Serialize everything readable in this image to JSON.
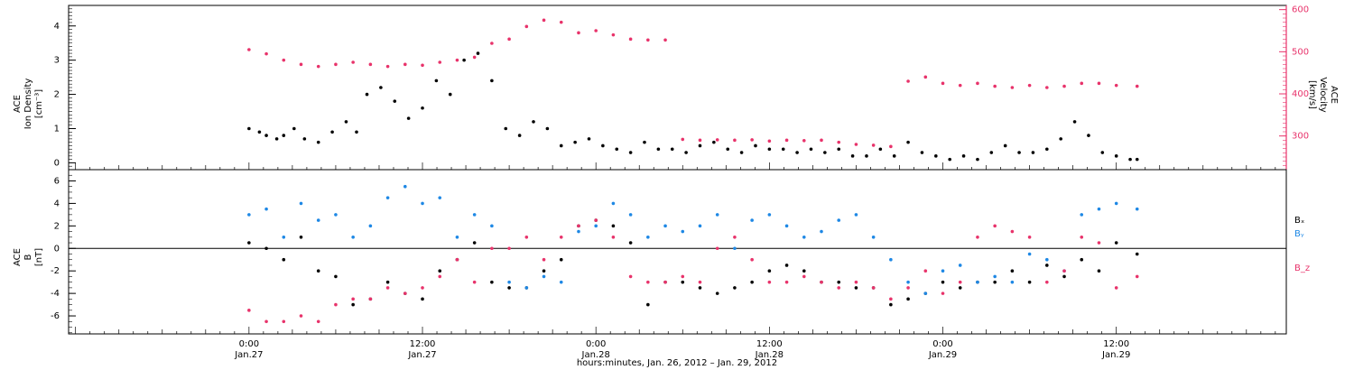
{
  "chart_data": [
    {
      "type": "scatter",
      "panel": "top",
      "ylabel_left": [
        "ACE",
        "Ion Density",
        "[cm⁻³]"
      ],
      "ylabel_right": [
        "ACE",
        "Velocity",
        "[km/s]"
      ],
      "yleft_ticks": [
        "0",
        "1",
        "2",
        "3",
        "4"
      ],
      "yleft_lim": [
        -0.2,
        4.6
      ],
      "yright_ticks": [
        "300",
        "400",
        "500",
        "600"
      ],
      "yright_lim": [
        220,
        610
      ],
      "colors": {
        "density": "#000000",
        "velocity": "#e8336b"
      },
      "series": [
        {
          "axis": "left",
          "color": "#000000",
          "x": [
            0,
            0.03,
            0.05,
            0.08,
            0.1,
            0.13,
            0.16,
            0.2,
            0.24,
            0.28,
            0.31,
            0.34,
            0.38,
            0.42,
            0.46,
            0.5,
            0.54,
            0.58,
            0.62,
            0.66,
            0.7,
            0.74,
            0.78,
            0.82,
            0.86,
            0.9,
            0.94,
            0.98,
            1.02,
            1.06,
            1.1,
            1.14,
            1.18,
            1.22,
            1.26,
            1.3,
            1.34,
            1.38,
            1.42,
            1.46,
            1.5,
            1.54,
            1.58,
            1.62,
            1.66,
            1.7,
            1.74,
            1.78,
            1.82,
            1.86,
            1.9,
            1.94,
            1.98,
            2.02,
            2.06,
            2.1,
            2.14,
            2.18,
            2.22,
            2.26,
            2.3,
            2.34,
            2.38,
            2.42,
            2.46,
            2.5,
            2.54,
            2.56
          ],
          "y": [
            1.0,
            0.9,
            0.8,
            0.7,
            0.8,
            1.0,
            0.7,
            0.6,
            0.9,
            1.2,
            0.9,
            2.0,
            2.2,
            1.8,
            1.3,
            1.6,
            2.4,
            2.0,
            3.0,
            3.2,
            2.4,
            1.0,
            0.8,
            1.2,
            1.0,
            0.5,
            0.6,
            0.7,
            0.5,
            0.4,
            0.3,
            0.6,
            0.4,
            0.4,
            0.3,
            0.5,
            0.6,
            0.4,
            0.3,
            0.5,
            0.4,
            0.4,
            0.3,
            0.4,
            0.3,
            0.4,
            0.2,
            0.2,
            0.4,
            0.2,
            0.6,
            0.3,
            0.2,
            0.1,
            0.2,
            0.1,
            0.3,
            0.5,
            0.3,
            0.3,
            0.4,
            0.7,
            1.2,
            0.8,
            0.3,
            0.2,
            0.1,
            0.1
          ]
        },
        {
          "axis": "right",
          "color": "#e8336b",
          "x": [
            0,
            0.05,
            0.1,
            0.15,
            0.2,
            0.25,
            0.3,
            0.35,
            0.4,
            0.45,
            0.5,
            0.55,
            0.6,
            0.65,
            0.7,
            0.75,
            0.8,
            0.85,
            0.9,
            0.95,
            1.0,
            1.05,
            1.1,
            1.15,
            1.2,
            1.25,
            1.3,
            1.35,
            1.4,
            1.45,
            1.5,
            1.55,
            1.6,
            1.65,
            1.7,
            1.75,
            1.8,
            1.85,
            1.9,
            1.95,
            2.0,
            2.05,
            2.1,
            2.15,
            2.2,
            2.25,
            2.3,
            2.35,
            2.4,
            2.45,
            2.5,
            2.56
          ],
          "y": [
            505,
            495,
            480,
            470,
            465,
            470,
            475,
            470,
            465,
            470,
            468,
            475,
            480,
            487,
            520,
            530,
            560,
            575,
            570,
            545,
            550,
            540,
            530,
            528,
            528,
            292,
            290,
            291,
            290,
            291,
            288,
            290,
            289,
            290,
            285,
            280,
            278,
            275,
            430,
            440,
            425,
            420,
            425,
            418,
            415,
            420,
            415,
            418,
            425,
            425,
            420,
            418
          ]
        }
      ]
    },
    {
      "type": "scatter",
      "panel": "bottom",
      "ylabel": [
        "ACE",
        "B",
        "[nT]"
      ],
      "yticks": [
        "-6",
        "-4",
        "-2",
        "0",
        "2",
        "4",
        "6"
      ],
      "ylim": [
        -7.6,
        7.0
      ],
      "zero_line": true,
      "legend": [
        "Bₓ",
        "Bᵧ",
        "B_z"
      ],
      "colors": {
        "Bx": "#000000",
        "By": "#1e88e5",
        "Bz": "#e8336b"
      },
      "series": [
        {
          "name": "Bₓ",
          "color": "#000000",
          "x": [
            0,
            0.05,
            0.1,
            0.15,
            0.2,
            0.25,
            0.3,
            0.35,
            0.4,
            0.45,
            0.5,
            0.55,
            0.6,
            0.65,
            0.7,
            0.75,
            0.8,
            0.85,
            0.9,
            0.95,
            1.0,
            1.05,
            1.1,
            1.15,
            1.2,
            1.25,
            1.3,
            1.35,
            1.4,
            1.45,
            1.5,
            1.55,
            1.6,
            1.65,
            1.7,
            1.75,
            1.8,
            1.85,
            1.9,
            1.95,
            2.0,
            2.05,
            2.1,
            2.15,
            2.2,
            2.25,
            2.3,
            2.35,
            2.4,
            2.45,
            2.5,
            2.56
          ],
          "y": [
            0.5,
            0.0,
            -1.0,
            1.0,
            -2.0,
            -2.5,
            -5.0,
            -4.5,
            -3.0,
            -4.0,
            -4.5,
            -2.0,
            -1.0,
            0.5,
            -3.0,
            -3.5,
            -3.5,
            -2.0,
            -1.0,
            2.0,
            2.5,
            2.0,
            0.5,
            -5.0,
            -3.0,
            -3.0,
            -3.5,
            -4.0,
            -3.5,
            -3.0,
            -2.0,
            -1.5,
            -2.0,
            -3.0,
            -3.0,
            -3.5,
            -3.5,
            -5.0,
            -4.5,
            -4.0,
            -3.0,
            -3.5,
            -3.0,
            -3.0,
            -2.0,
            -3.0,
            -1.5,
            -2.5,
            -1.0,
            -2.0,
            0.5,
            -0.5
          ]
        },
        {
          "name": "Bᵧ",
          "color": "#1e88e5",
          "x": [
            0,
            0.05,
            0.1,
            0.15,
            0.2,
            0.25,
            0.3,
            0.35,
            0.4,
            0.45,
            0.5,
            0.55,
            0.6,
            0.65,
            0.7,
            0.75,
            0.8,
            0.85,
            0.9,
            0.95,
            1.0,
            1.05,
            1.1,
            1.15,
            1.2,
            1.25,
            1.3,
            1.35,
            1.4,
            1.45,
            1.5,
            1.55,
            1.6,
            1.65,
            1.7,
            1.75,
            1.8,
            1.85,
            1.9,
            1.95,
            2.0,
            2.05,
            2.1,
            2.15,
            2.2,
            2.25,
            2.3,
            2.35,
            2.4,
            2.45,
            2.5,
            2.56
          ],
          "y": [
            3.0,
            3.5,
            1.0,
            4.0,
            2.5,
            3.0,
            1.0,
            2.0,
            4.5,
            5.5,
            4.0,
            4.5,
            1.0,
            3.0,
            2.0,
            -3.0,
            -3.5,
            -2.5,
            -3.0,
            1.5,
            2.0,
            4.0,
            3.0,
            1.0,
            2.0,
            1.5,
            2.0,
            3.0,
            0.0,
            2.5,
            3.0,
            2.0,
            1.0,
            1.5,
            2.5,
            3.0,
            1.0,
            -1.0,
            -3.0,
            -4.0,
            -2.0,
            -1.5,
            -3.0,
            -2.5,
            -3.0,
            -0.5,
            -1.0,
            -2.0,
            3.0,
            3.5,
            4.0,
            3.5
          ]
        },
        {
          "name": "B_z",
          "color": "#e8336b",
          "x": [
            0,
            0.05,
            0.1,
            0.15,
            0.2,
            0.25,
            0.3,
            0.35,
            0.4,
            0.45,
            0.5,
            0.55,
            0.6,
            0.65,
            0.7,
            0.75,
            0.8,
            0.85,
            0.9,
            0.95,
            1.0,
            1.05,
            1.1,
            1.15,
            1.2,
            1.25,
            1.3,
            1.35,
            1.4,
            1.45,
            1.5,
            1.55,
            1.6,
            1.65,
            1.7,
            1.75,
            1.8,
            1.85,
            1.9,
            1.95,
            2.0,
            2.05,
            2.1,
            2.15,
            2.2,
            2.25,
            2.3,
            2.35,
            2.4,
            2.45,
            2.5,
            2.56
          ],
          "y": [
            -5.5,
            -6.5,
            -6.5,
            -6.0,
            -6.5,
            -5.0,
            -4.5,
            -4.5,
            -3.5,
            -4.0,
            -3.5,
            -2.5,
            -1.0,
            -3.0,
            0.0,
            0.0,
            1.0,
            -1.0,
            1.0,
            2.0,
            2.5,
            1.0,
            -2.5,
            -3.0,
            -3.0,
            -2.5,
            -3.0,
            0.0,
            1.0,
            -1.0,
            -3.0,
            -3.0,
            -2.5,
            -3.0,
            -3.5,
            -3.0,
            -3.5,
            -4.5,
            -3.5,
            -2.0,
            -4.0,
            -3.0,
            1.0,
            2.0,
            1.5,
            1.0,
            -3.0,
            -2.0,
            1.0,
            0.5,
            -3.5,
            -2.5
          ]
        }
      ]
    }
  ],
  "x_axis": {
    "lim": [
      -0.52,
      2.99
    ],
    "major_ticks": [
      {
        "x": 0.0,
        "time": "0:00",
        "date": "Jan.27"
      },
      {
        "x": 0.5,
        "time": "12:00",
        "date": "Jan.27"
      },
      {
        "x": 1.0,
        "time": "0:00",
        "date": "Jan.28"
      },
      {
        "x": 1.5,
        "time": "12:00",
        "date": "Jan.28"
      },
      {
        "x": 2.0,
        "time": "0:00",
        "date": "Jan.29"
      },
      {
        "x": 2.5,
        "time": "12:00",
        "date": "Jan.29"
      }
    ],
    "title": "hours:minutes, Jan. 26, 2012 – Jan. 29, 2012"
  }
}
